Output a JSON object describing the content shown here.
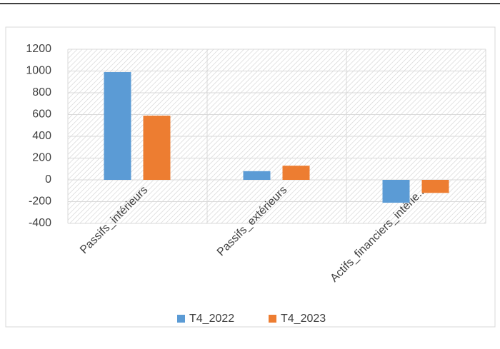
{
  "chart_data": {
    "type": "bar",
    "categories": [
      "Passifs_intérieurs",
      "Passifs_extérieurs",
      "Actifs_financiers_intérie..."
    ],
    "series": [
      {
        "name": "T4_2022",
        "color": "#5b9bd5",
        "values": [
          990,
          80,
          -210
        ]
      },
      {
        "name": "T4_2023",
        "color": "#ed7d31",
        "values": [
          590,
          130,
          -120
        ]
      }
    ],
    "ylim": [
      -400,
      1200
    ],
    "yticks": [
      -400,
      -200,
      0,
      200,
      400,
      600,
      800,
      1000,
      1200
    ],
    "grid": true,
    "legend": "bottom"
  }
}
